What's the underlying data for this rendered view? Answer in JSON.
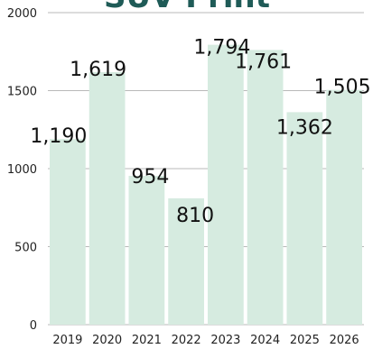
{
  "chart_data": {
    "type": "bar",
    "title": "SUV Print",
    "categories": [
      "2019",
      "2020",
      "2021",
      "2022",
      "2023",
      "2024",
      "2025",
      "2026"
    ],
    "values": [
      1190,
      1619,
      954,
      810,
      1794,
      1761,
      1362,
      1505
    ],
    "value_labels": [
      "1,190",
      "1,619",
      "954",
      "810",
      "1,794",
      "1,761",
      "1,362",
      "1,505"
    ],
    "yticks": [
      "0",
      "500",
      "1000",
      "1500",
      "2000"
    ],
    "ylim": [
      0,
      2000
    ],
    "xlabel": "",
    "ylabel": "",
    "grid": true,
    "bar_color": "#d6ebe0",
    "grid_color": "#b8b8b8",
    "title_color": "#1f5b57"
  }
}
